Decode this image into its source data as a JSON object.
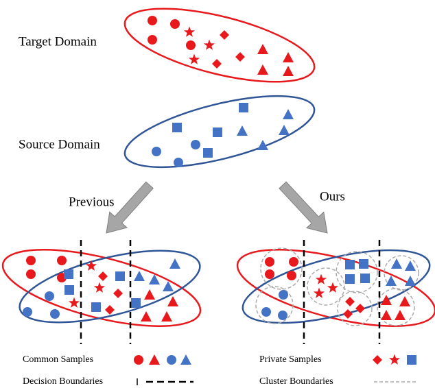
{
  "labels": {
    "target_domain": "Target Domain",
    "source_domain": "Source Domain",
    "previous": "Previous",
    "ours": "Ours"
  },
  "legend": {
    "common_samples": "Common Samples",
    "decision_boundaries": "Decision Boundaries",
    "private_samples": "Private Samples",
    "cluster_boundaries": "Cluster Boundaries"
  }
}
